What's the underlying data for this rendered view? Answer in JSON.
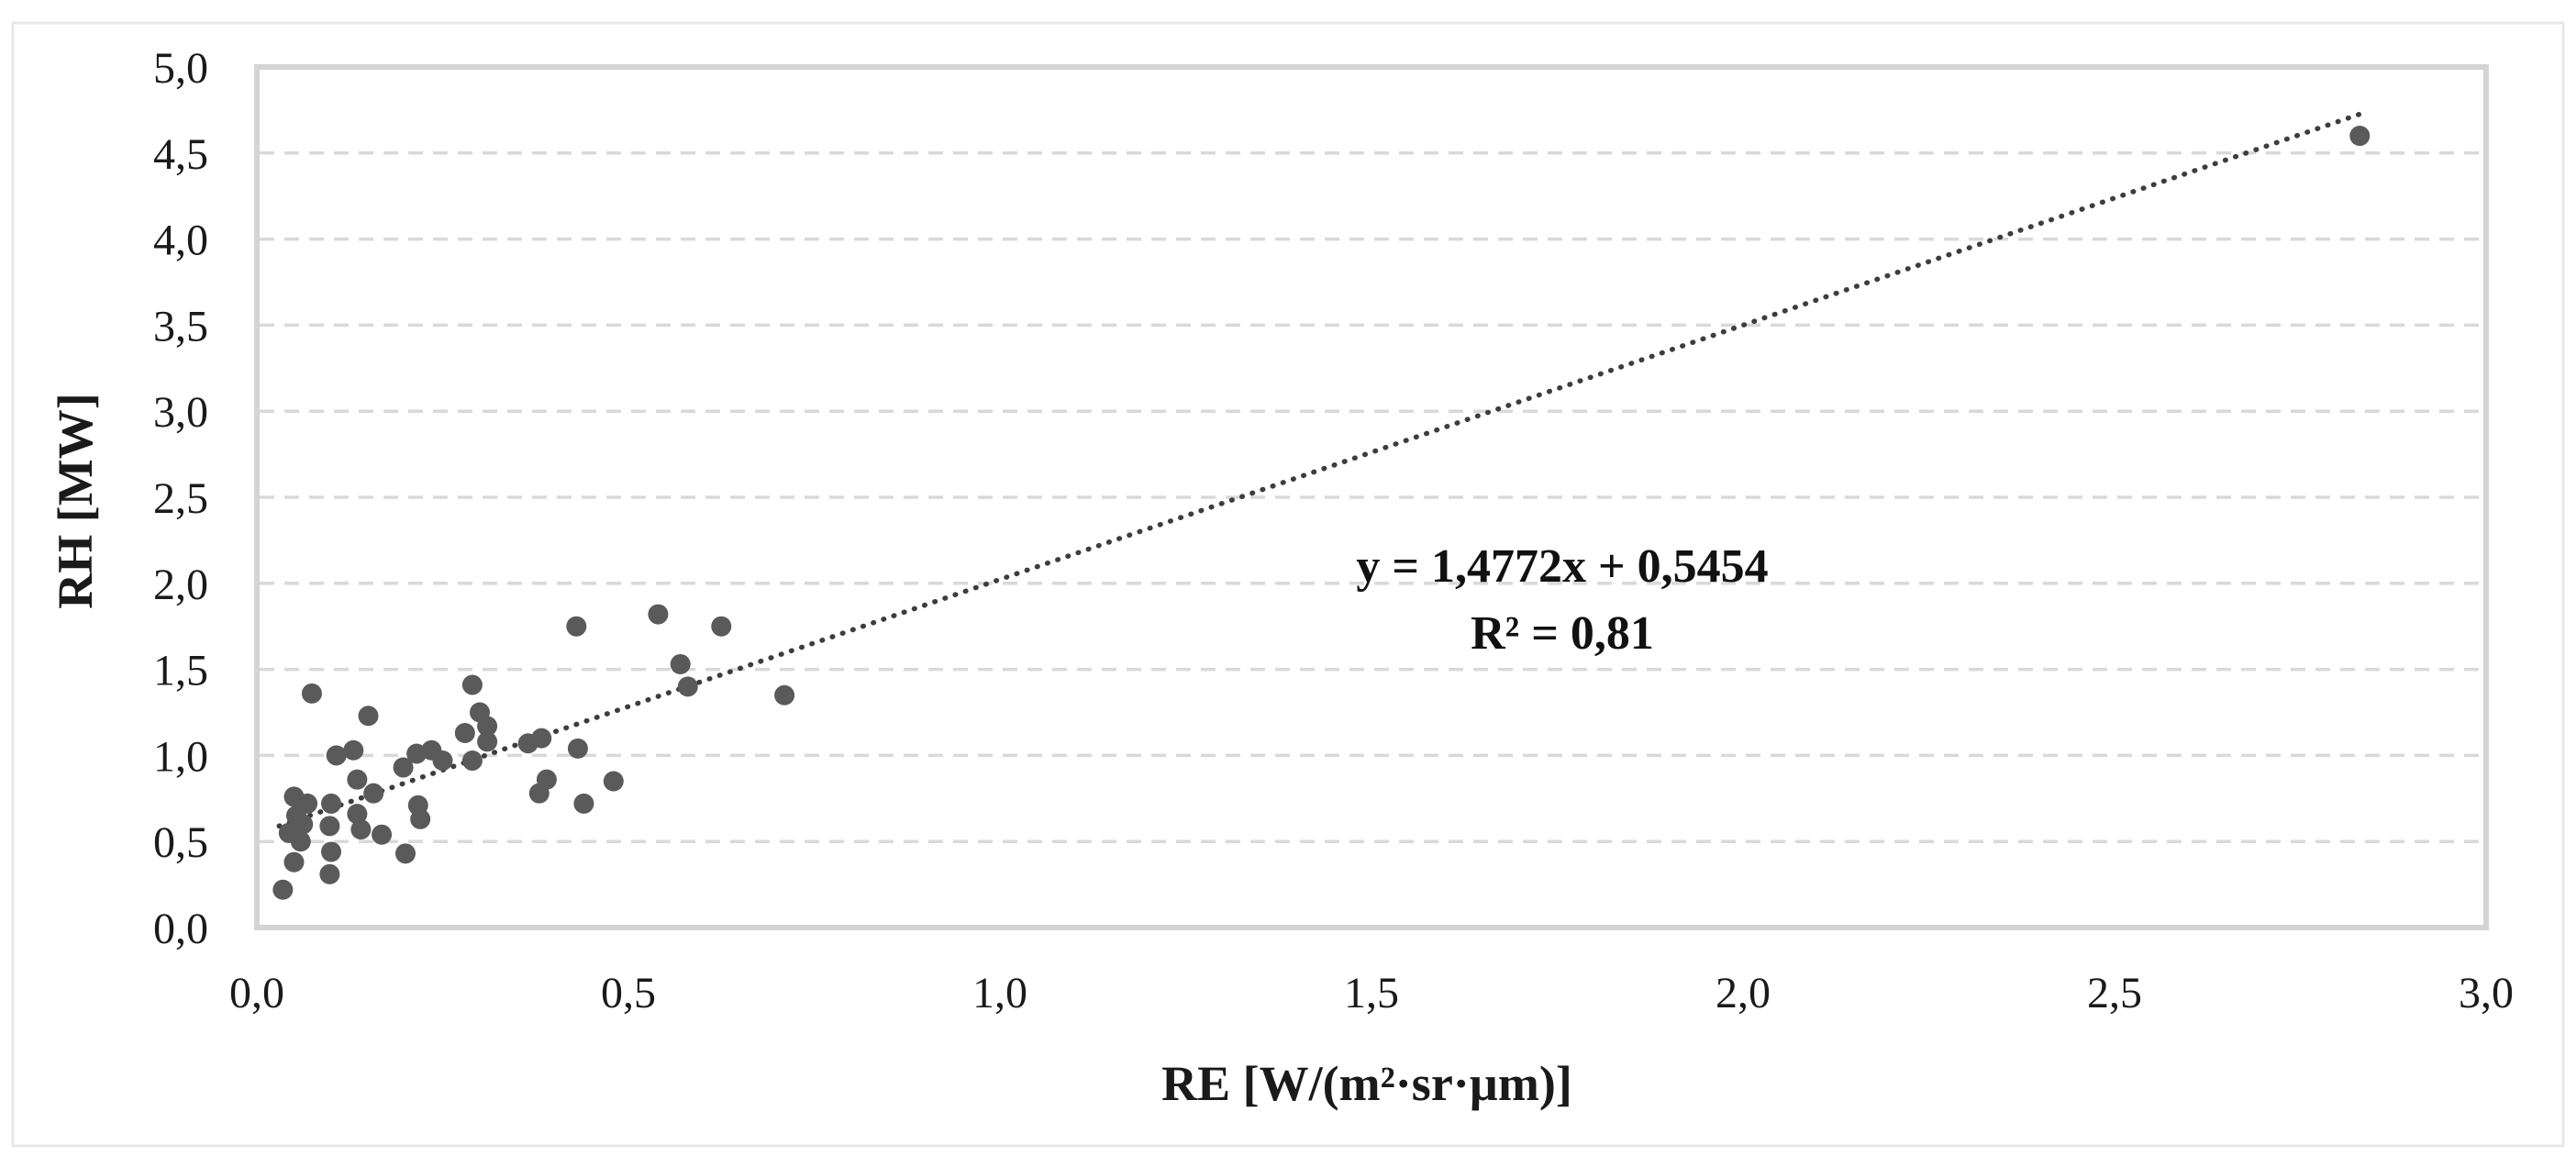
{
  "figure": {
    "background": "#ffffff",
    "outer_border_color": "#e8e8e8",
    "plot_border_color": "#d4d4d4"
  },
  "chart_data": {
    "type": "scatter",
    "title": "",
    "xlabel": "RE [W/(m²·sr·µm)]",
    "ylabel": "RH [MW]",
    "xlim": [
      0.0,
      3.0
    ],
    "ylim": [
      0.0,
      5.0
    ],
    "x_tick_values": [
      0.0,
      0.5,
      1.0,
      1.5,
      2.0,
      2.5,
      3.0
    ],
    "x_tick_labels": [
      "0,0",
      "0,5",
      "1,0",
      "1,5",
      "2,0",
      "2,5",
      "3,0"
    ],
    "y_tick_values": [
      0.0,
      0.5,
      1.0,
      1.5,
      2.0,
      2.5,
      3.0,
      3.5,
      4.0,
      4.5,
      5.0
    ],
    "y_tick_labels": [
      "0,0",
      "0,5",
      "1,0",
      "1,5",
      "2,0",
      "2,5",
      "3,0",
      "3,5",
      "4,0",
      "4,5",
      "5,0"
    ],
    "grid": "horizontal-dashed",
    "legend": "none",
    "point_color": "#5a5a5a",
    "point_radius": 11,
    "gridline_color": "#d9d9d9",
    "trendline_color": "#3d3d3d",
    "points": [
      [
        0.035,
        0.22
      ],
      [
        0.05,
        0.38
      ],
      [
        0.043,
        0.55
      ],
      [
        0.059,
        0.5
      ],
      [
        0.053,
        0.65
      ],
      [
        0.062,
        0.6
      ],
      [
        0.05,
        0.76
      ],
      [
        0.068,
        0.72
      ],
      [
        0.074,
        1.36
      ],
      [
        0.098,
        0.31
      ],
      [
        0.1,
        0.44
      ],
      [
        0.098,
        0.59
      ],
      [
        0.1,
        0.72
      ],
      [
        0.107,
        1.0
      ],
      [
        0.13,
        1.03
      ],
      [
        0.135,
        0.86
      ],
      [
        0.135,
        0.66
      ],
      [
        0.14,
        0.57
      ],
      [
        0.15,
        1.23
      ],
      [
        0.157,
        0.78
      ],
      [
        0.168,
        0.54
      ],
      [
        0.197,
        0.93
      ],
      [
        0.2,
        0.43
      ],
      [
        0.215,
        1.01
      ],
      [
        0.217,
        0.71
      ],
      [
        0.22,
        0.63
      ],
      [
        0.235,
        1.03
      ],
      [
        0.25,
        0.97
      ],
      [
        0.28,
        1.13
      ],
      [
        0.29,
        1.41
      ],
      [
        0.29,
        0.97
      ],
      [
        0.3,
        1.25
      ],
      [
        0.31,
        1.17
      ],
      [
        0.31,
        1.08
      ],
      [
        0.365,
        1.07
      ],
      [
        0.383,
        1.1
      ],
      [
        0.38,
        0.78
      ],
      [
        0.39,
        0.86
      ],
      [
        0.43,
        1.75
      ],
      [
        0.432,
        1.04
      ],
      [
        0.44,
        0.72
      ],
      [
        0.48,
        0.85
      ],
      [
        0.54,
        1.82
      ],
      [
        0.57,
        1.53
      ],
      [
        0.58,
        1.4
      ],
      [
        0.625,
        1.75
      ],
      [
        0.71,
        1.35
      ],
      [
        2.83,
        4.6
      ]
    ],
    "trendline": {
      "equation_label": "y = 1,4772x + 0,5454",
      "r2_label": "R² = 0,81",
      "slope": 1.4772,
      "intercept": 0.5454,
      "r_squared": 0.81,
      "x_start": 0.03,
      "x_end": 2.84,
      "style": "dotted"
    }
  }
}
